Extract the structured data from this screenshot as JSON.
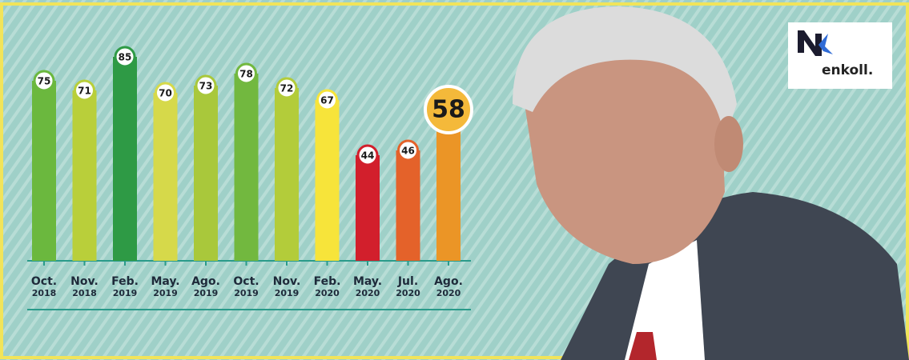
{
  "chart_data": {
    "type": "bar",
    "categories": [
      [
        "Oct.",
        "2018"
      ],
      [
        "Nov.",
        "2018"
      ],
      [
        "Feb.",
        "2019"
      ],
      [
        "May.",
        "2019"
      ],
      [
        "Ago.",
        "2019"
      ],
      [
        "Oct.",
        "2019"
      ],
      [
        "Nov.",
        "2019"
      ],
      [
        "Feb.",
        "2020"
      ],
      [
        "May.",
        "2020"
      ],
      [
        "Jul.",
        "2020"
      ],
      [
        "Ago.",
        "2020"
      ]
    ],
    "values": [
      75,
      71,
      85,
      70,
      73,
      78,
      72,
      67,
      44,
      46,
      58
    ],
    "colors": [
      "#6bb83e",
      "#b9cf3a",
      "#2e9a45",
      "#d6d94a",
      "#a9c83b",
      "#72b83f",
      "#b3cc3a",
      "#f7e43a",
      "#d21f2c",
      "#e4622a",
      "#eb9526"
    ],
    "highlight_index": 10,
    "logo": "enkoll."
  }
}
